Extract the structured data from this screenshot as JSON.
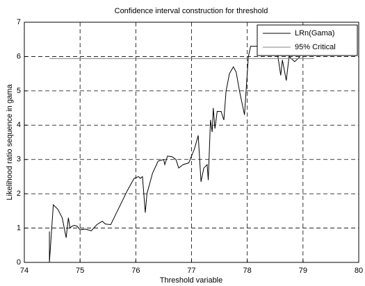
{
  "chart_data": {
    "type": "line",
    "title": "Confidence interval construction for threshold",
    "xlabel": "Threshold variable",
    "ylabel": "Likelihood ratio sequence in gama",
    "xlim": [
      74,
      80
    ],
    "xticks": [
      74,
      75,
      76,
      77,
      78,
      79,
      80
    ],
    "ylim": [
      0,
      7
    ],
    "yticks": [
      0,
      1,
      2,
      3,
      4,
      5,
      6,
      7
    ],
    "grid": true,
    "legend": "upper right",
    "series": [
      {
        "name": "LRn(Gama)",
        "color": "#000000",
        "x": [
          74.45,
          74.45,
          74.52,
          74.6,
          74.68,
          74.75,
          74.79,
          74.82,
          74.85,
          74.9,
          74.95,
          75.0,
          75.1,
          75.2,
          75.3,
          75.4,
          75.45,
          75.55,
          75.7,
          75.85,
          75.97,
          76.05,
          76.08,
          76.12,
          76.17,
          76.2,
          76.3,
          76.4,
          76.5,
          76.52,
          76.57,
          76.65,
          76.72,
          76.77,
          76.85,
          76.95,
          77.05,
          77.12,
          77.17,
          77.22,
          77.28,
          77.3,
          77.34,
          77.37,
          77.39,
          77.42,
          77.46,
          77.53,
          77.58,
          77.62,
          77.68,
          77.75,
          77.8,
          77.86,
          77.95,
          78.02,
          78.06,
          78.2,
          78.45,
          78.55,
          78.6,
          78.63,
          78.7,
          78.75,
          78.85,
          78.95
        ],
        "values": [
          0.9,
          0,
          1.68,
          1.55,
          1.3,
          0.72,
          1.3,
          1.0,
          1.05,
          1.08,
          1.05,
          0.95,
          0.97,
          0.92,
          1.1,
          1.2,
          1.12,
          1.1,
          1.6,
          2.1,
          2.45,
          2.5,
          2.45,
          2.5,
          1.45,
          2.0,
          2.6,
          2.95,
          3.0,
          2.85,
          3.1,
          3.08,
          3.0,
          2.75,
          2.85,
          2.9,
          3.3,
          3.7,
          2.35,
          2.75,
          2.85,
          2.4,
          4.15,
          3.8,
          4.5,
          3.9,
          4.4,
          4.4,
          4.15,
          5.0,
          5.5,
          5.7,
          5.55,
          5.0,
          4.3,
          6.0,
          6.3,
          6.3,
          6.3,
          6.0,
          5.45,
          5.9,
          5.3,
          6.0,
          5.85,
          6.0
        ]
      },
      {
        "name": "95% Critical",
        "color": "#808080",
        "x": [
          74.45,
          79.2
        ],
        "values": [
          5.94,
          5.94
        ]
      }
    ]
  }
}
